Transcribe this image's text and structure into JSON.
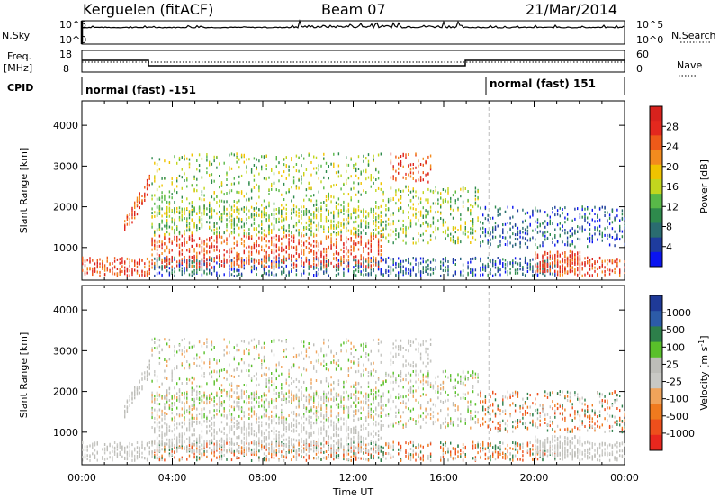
{
  "header": {
    "station": "Kerguelen (fitACF)",
    "beam": "Beam 07",
    "date": "21/Mar/2014"
  },
  "strip_labels": {
    "nsky": "N.Sky",
    "nsky_top": "10^5",
    "nsky_bottom": "10^0",
    "freq": "Freq.",
    "freq_unit": "[MHz]",
    "freq_top": "18",
    "freq_bottom": "8",
    "cpid": "CPID",
    "nsearch": "N.Search",
    "nave": "Nave",
    "nave_top": "60",
    "nave_bottom": "0",
    "mode_a": "normal (fast) -151",
    "mode_b": "normal (fast) 151"
  },
  "colors": {
    "power": [
      "#0a14f0",
      "#1e3c9e",
      "#2a6c70",
      "#2e8a4c",
      "#58b848",
      "#c2d61e",
      "#f0c300",
      "#f38b1e",
      "#ee5a19",
      "#e3281e",
      "#d8221d"
    ],
    "velocity": [
      "#e8271e",
      "#ed4f1c",
      "#f07a1e",
      "#f0a35a",
      "#c8c8c4",
      "#bdbdb8",
      "#59c02a",
      "#2d7f4a",
      "#2c5ba8",
      "#1f3a98"
    ]
  },
  "chart_data": [
    {
      "type": "heatmap",
      "title": "Power",
      "xlabel": "Time UT",
      "ylabel": "Slant Range [km]",
      "x_ticks": [
        "00:00",
        "04:00",
        "08:00",
        "12:00",
        "16:00",
        "20:00",
        "00:00"
      ],
      "y_ticks": [
        "1000",
        "2000",
        "3000",
        "4000"
      ],
      "ylim": [
        200,
        4600
      ],
      "colorbar_label": "Power [dB]",
      "colorbar_ticks": [
        "4",
        "8",
        "12",
        "16",
        "20",
        "24",
        "28"
      ],
      "scale": [
        0,
        30
      ]
    },
    {
      "type": "heatmap",
      "title": "Velocity",
      "xlabel": "Time UT",
      "ylabel": "Slant Range [km]",
      "x_ticks": [
        "00:00",
        "04:00",
        "08:00",
        "12:00",
        "16:00",
        "20:00",
        "00:00"
      ],
      "y_ticks": [
        "1000",
        "2000",
        "3000",
        "4000"
      ],
      "ylim": [
        200,
        4600
      ],
      "colorbar_label": "Velocity [m s",
      "colorbar_unit_sup": "-1",
      "colorbar_unit_close": "]",
      "colorbar_ticks": [
        "1000",
        "500",
        "100",
        "25",
        "-25",
        "-100",
        "-500",
        "-1000"
      ],
      "scale": [
        -1000,
        1000
      ]
    }
  ],
  "xlabel": "Time UT"
}
